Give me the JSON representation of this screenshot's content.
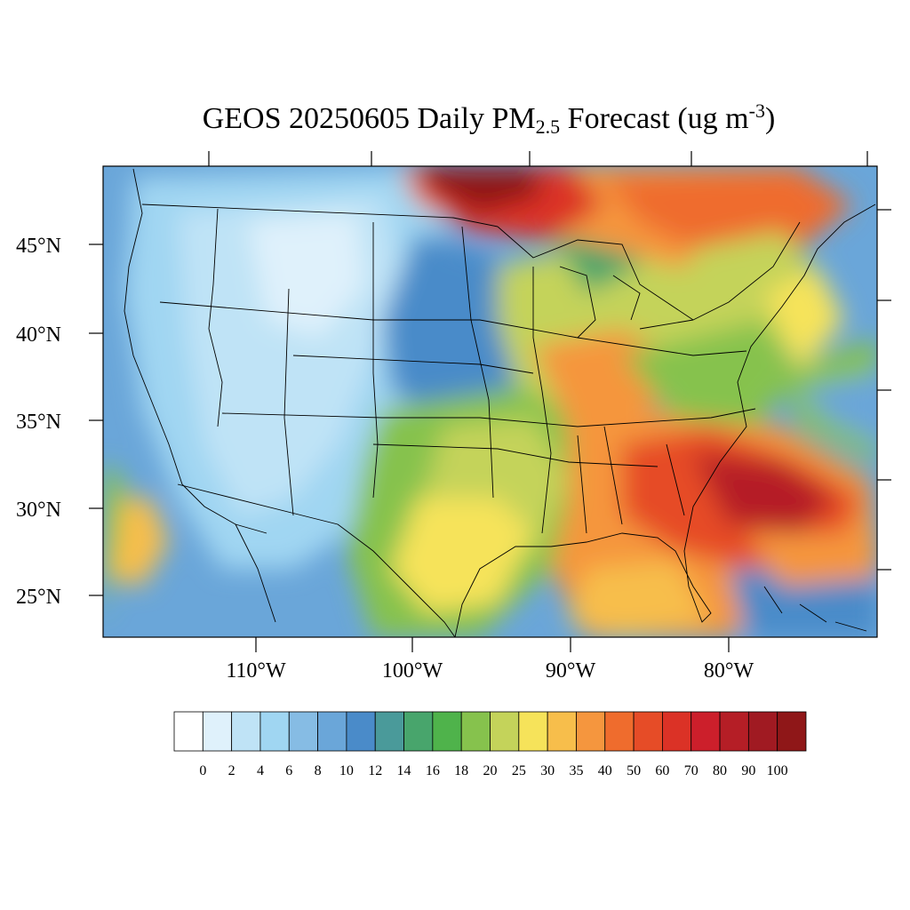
{
  "title": {
    "main": "GEOS 20250605 Daily PM",
    "sub": "2.5",
    "rest": " Forecast (ug m",
    "sup": "-3",
    "close": ")"
  },
  "map": {
    "lon_range": [
      -119,
      -70
    ],
    "lat_range": [
      22.8,
      49.5
    ],
    "lat_labels": [
      "45°N",
      "40°N",
      "35°N",
      "30°N",
      "25°N"
    ],
    "lon_labels": [
      "110°W",
      "100°W",
      "90°W",
      "80°W"
    ]
  },
  "colorbar": {
    "labels": [
      "0",
      "2",
      "4",
      "6",
      "8",
      "10",
      "12",
      "14",
      "16",
      "18",
      "20",
      "25",
      "30",
      "35",
      "40",
      "50",
      "60",
      "70",
      "80",
      "90",
      "100"
    ],
    "colors": [
      "#ffffff",
      "#dff1fb",
      "#bfe3f6",
      "#a0d6f2",
      "#86bce4",
      "#6aa6d9",
      "#4a8bc9",
      "#4a9a9a",
      "#48a56c",
      "#4fb34b",
      "#86c24d",
      "#c4d35a",
      "#f6e35a",
      "#f7be4b",
      "#f5963e",
      "#ef6c2d",
      "#e64c27",
      "#db3226",
      "#cc1f2b",
      "#b51e26",
      "#a01a22",
      "#8f1718"
    ]
  }
}
